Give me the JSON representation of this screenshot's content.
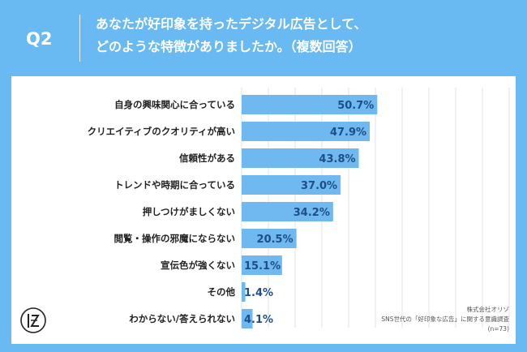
{
  "header": {
    "question_label": "Q2",
    "title_line1": "あなたが好印象を持ったデジタル広告として、",
    "title_line2": "どのような特徴がありましたか。（複数回答）"
  },
  "chart_data": {
    "type": "bar",
    "orientation": "horizontal",
    "categories": [
      "自身の興味関心に合っている",
      "クリエイティブのクオリティが高い",
      "信頼性がある",
      "トレンドや時期に合っている",
      "押しつけがましくない",
      "閲覧・操作の邪魔にならない",
      "宣伝色が強くない",
      "その他",
      "わからない/答えられない"
    ],
    "values": [
      50.7,
      47.9,
      43.8,
      37.0,
      34.2,
      20.5,
      15.1,
      1.4,
      4.1
    ],
    "data_labels": [
      "50.7%",
      "47.9%",
      "43.8%",
      "37.0%",
      "34.2%",
      "20.5%",
      "15.1%",
      "1.4%",
      "4.1%"
    ],
    "xlim": [
      0,
      100
    ],
    "grid": true,
    "bar_color": "#6fb8f0"
  },
  "footer": {
    "company": "株式会社オリゾ",
    "survey": "SNS世代の「好印象な広告」に関する意識調査",
    "sample": "(n=73)"
  },
  "colors": {
    "background": "#69b9f2",
    "card": "#ffffff",
    "bar": "#6fb8f0",
    "label_text": "#222222",
    "value_text": "#1d4f86"
  }
}
